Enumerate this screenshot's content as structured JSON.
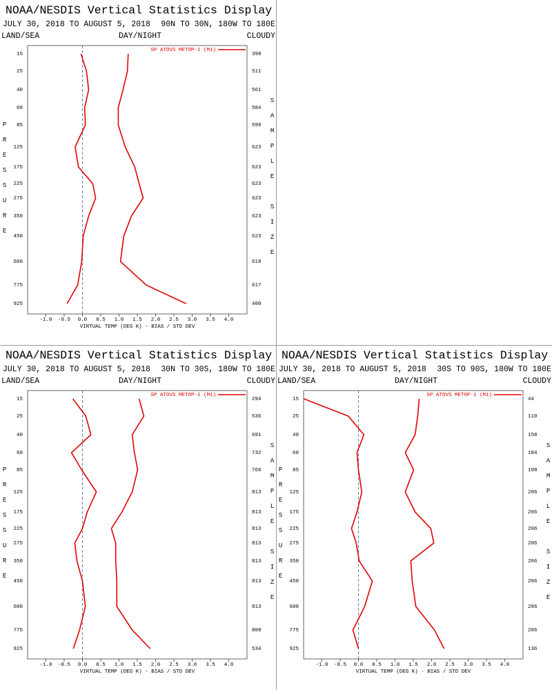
{
  "chart_data": [
    {
      "type": "profile",
      "title": "NOAA/NESDIS Vertical Statistics Display",
      "date_range": "JULY 30, 2018 TO AUGUST 5, 2018",
      "region": "90N TO 30N, 180W TO 180E",
      "land_sea": "LAND/SEA",
      "day_night": "DAY/NIGHT",
      "cloudy": "CLOUDY",
      "y_label": "PRESSURE",
      "y2_label": "SAMPLE SIZE",
      "x_label": "VIRTUAL TEMP (DEG K) - BIAS / STD DEV",
      "categories": [
        "15",
        "25",
        "40",
        "60",
        "85",
        "125",
        "175",
        "225",
        "275",
        "350",
        "450",
        "600",
        "775",
        "925"
      ],
      "sample_size": [
        "398",
        "511",
        "561",
        "584",
        "599",
        "623",
        "623",
        "623",
        "623",
        "623",
        "623",
        "618",
        "617",
        "400"
      ],
      "series": [
        {
          "name": "SP ATOVS METOP-1 (M1)",
          "color": "#e00000",
          "values": [
            -0.04,
            0.11,
            0.17,
            0.06,
            0.08,
            -0.2,
            -0.11,
            0.28,
            0.36,
            0.17,
            0.02,
            -0.02,
            -0.13,
            -0.42
          ],
          "std_dev": [
            1.25,
            1.23,
            1.11,
            0.98,
            0.98,
            1.17,
            1.43,
            1.55,
            1.66,
            1.34,
            1.13,
            1.04,
            1.74,
            2.83
          ]
        }
      ],
      "xlim": [
        -1.5,
        4.5
      ],
      "xticks": [
        {
          "value": -1,
          "label": "-1.0"
        },
        {
          "value": -0.5,
          "label": "-0.5"
        },
        {
          "value": 0,
          "label": "0.0"
        },
        {
          "value": 0.5,
          "label": "0.5"
        },
        {
          "value": 1,
          "label": "1.0"
        },
        {
          "value": 1.5,
          "label": "1.5"
        },
        {
          "value": 2,
          "label": "2.0"
        },
        {
          "value": 2.5,
          "label": "2.5"
        },
        {
          "value": 3,
          "label": "3.0"
        },
        {
          "value": 3.5,
          "label": "3.5"
        },
        {
          "value": 4,
          "label": "4.0"
        }
      ]
    },
    {
      "type": "profile",
      "title": "NOAA/NESDIS Vertical Statistics Display",
      "date_range": "JULY 30, 2018 TO AUGUST 5, 2018",
      "region": "30N TO 30S, 180W TO 180E",
      "land_sea": "LAND/SEA",
      "day_night": "DAY/NIGHT",
      "cloudy": "CLOUDY",
      "y_label": "PRESSURE",
      "y2_label": "SAMPLE SIZE",
      "x_label": "VIRTUAL TEMP (DEG K) - BIAS / STD DEV",
      "categories": [
        "15",
        "25",
        "40",
        "60",
        "85",
        "125",
        "175",
        "225",
        "275",
        "350",
        "450",
        "600",
        "775",
        "925"
      ],
      "sample_size": [
        "294",
        "536",
        "691",
        "732",
        "766",
        "813",
        "813",
        "813",
        "813",
        "813",
        "813",
        "813",
        "808",
        "534"
      ],
      "series": [
        {
          "name": "SP ATOVS METOP-1 (M1)",
          "color": "#e00000",
          "values": [
            -0.26,
            0.09,
            0.23,
            -0.3,
            -0.02,
            0.38,
            0.13,
            0,
            -0.21,
            -0.15,
            0,
            0.08,
            -0.08,
            -0.25
          ],
          "std_dev": [
            1.55,
            1.68,
            1.36,
            1.42,
            1.51,
            1.36,
            1.08,
            0.79,
            0.91,
            0.91,
            0.94,
            0.94,
            1.36,
            1.85
          ]
        }
      ],
      "xlim": [
        -1.5,
        4.5
      ],
      "xticks": [
        {
          "value": -1,
          "label": "-1.0"
        },
        {
          "value": -0.5,
          "label": "-0.5"
        },
        {
          "value": 0,
          "label": "0.0"
        },
        {
          "value": 0.5,
          "label": "0.5"
        },
        {
          "value": 1,
          "label": "1.0"
        },
        {
          "value": 1.5,
          "label": "1.5"
        },
        {
          "value": 2,
          "label": "2.0"
        },
        {
          "value": 2.5,
          "label": "2.5"
        },
        {
          "value": 3,
          "label": "3.0"
        },
        {
          "value": 3.5,
          "label": "3.5"
        },
        {
          "value": 4,
          "label": "4.0"
        }
      ]
    },
    {
      "type": "profile",
      "title": "NOAA/NESDIS Vertical Statistics Display",
      "date_range": "JULY 30, 2018 TO AUGUST 5, 2018",
      "region": "30S TO 90S, 180W TO 180E",
      "land_sea": "LAND/SEA",
      "day_night": "DAY/NIGHT",
      "cloudy": "CLOUDY",
      "y_label": "PRESSURE",
      "y2_label": "SAMPLE SIZE",
      "x_label": "VIRTUAL TEMP (DEG K) - BIAS / STD DEV",
      "categories": [
        "15",
        "25",
        "40",
        "60",
        "85",
        "125",
        "175",
        "225",
        "275",
        "350",
        "450",
        "600",
        "775",
        "925"
      ],
      "sample_size": [
        "44",
        "110",
        "158",
        "184",
        "198",
        "206",
        "206",
        "206",
        "206",
        "206",
        "206",
        "206",
        "206",
        "136"
      ],
      "series": [
        {
          "name": "SP ATOVS METOP-1 (M1)",
          "color": "#e00000",
          "values": [
            -1.49,
            -0.28,
            0.15,
            -0.04,
            0,
            0.09,
            -0.04,
            -0.19,
            -0.06,
            0.02,
            0.38,
            0.17,
            -0.15,
            0
          ],
          "std_dev": [
            1.66,
            1.62,
            1.55,
            1.28,
            1.51,
            1.28,
            1.55,
            1.98,
            2.06,
            1.43,
            1.47,
            1.57,
            2.08,
            2.34
          ]
        }
      ],
      "xlim": [
        -1.5,
        4.5
      ],
      "xticks": [
        {
          "value": -1,
          "label": "-1.0"
        },
        {
          "value": -0.5,
          "label": "-0.5"
        },
        {
          "value": 0,
          "label": "0.0"
        },
        {
          "value": 0.5,
          "label": "0.5"
        },
        {
          "value": 1,
          "label": "1.0"
        },
        {
          "value": 1.5,
          "label": "1.5"
        },
        {
          "value": 2,
          "label": "2.0"
        },
        {
          "value": 2.5,
          "label": "2.5"
        },
        {
          "value": 3,
          "label": "3.0"
        },
        {
          "value": 3.5,
          "label": "3.5"
        },
        {
          "value": 4,
          "label": "4.0"
        }
      ]
    }
  ]
}
